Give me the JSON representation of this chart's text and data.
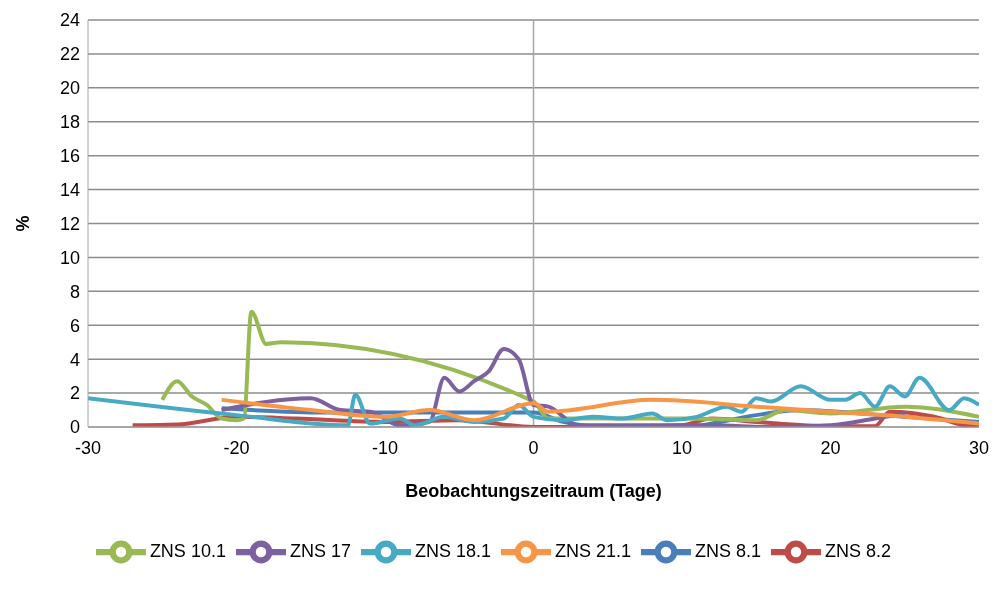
{
  "chart_data": {
    "type": "line",
    "xlabel": "Beobachtungszeitraum (Tage)",
    "ylabel": "%",
    "xlim": [
      -30,
      30
    ],
    "xticks": [
      -30,
      -20,
      -10,
      0,
      10,
      20,
      30
    ],
    "ylim": [
      0,
      24
    ],
    "yticks": [
      0,
      2,
      4,
      6,
      8,
      10,
      12,
      14,
      16,
      18,
      20,
      22,
      24
    ],
    "grid": "y",
    "legend": "bottom",
    "marker": "none",
    "line_style": "solid",
    "ref_lines": [
      {
        "axis": "x",
        "value": 0,
        "color": "#a6a6a6"
      }
    ],
    "series": [
      {
        "name": "ZNS 8.1",
        "color": "#4a7ebb",
        "x": [
          -21,
          -14,
          -7,
          0,
          2,
          5,
          10,
          15,
          18,
          22,
          25,
          30
        ],
        "values": [
          1.1,
          0.85,
          0.85,
          0.85,
          0.3,
          0,
          0,
          0.7,
          1.0,
          0.8,
          0.6,
          0.3
        ]
      },
      {
        "name": "ZNS 8.2",
        "color": "#be4b48",
        "x": [
          -27,
          -24,
          -20,
          -16,
          -10,
          -5,
          0,
          5,
          10,
          12,
          15,
          20,
          23,
          24,
          27,
          29,
          30
        ],
        "values": [
          0.1,
          0.15,
          0.6,
          0.5,
          0.3,
          0.4,
          0,
          0,
          0.1,
          0.5,
          0.3,
          0.05,
          0.05,
          0.9,
          0.6,
          0.1,
          0
        ]
      },
      {
        "name": "ZNS 10.1",
        "color": "#98b954",
        "x": [
          -25,
          -24,
          -23,
          -22,
          -21,
          -20,
          -19.5,
          -19,
          -18,
          -17,
          0,
          1,
          5,
          10,
          15,
          17,
          20,
          25,
          30
        ],
        "values": [
          1.6,
          2.7,
          1.8,
          1.3,
          0.5,
          0.4,
          0.5,
          6.8,
          4.9,
          5.0,
          1.5,
          0.5,
          0.5,
          0.5,
          0.4,
          1,
          0.8,
          1.2,
          0.6
        ]
      },
      {
        "name": "ZNS 17",
        "color": "#7d60a0",
        "x": [
          -21,
          -15,
          -13,
          -11,
          -9,
          -7,
          -6,
          -5,
          -4,
          -3,
          -2,
          -1,
          0,
          1,
          3,
          8,
          12,
          16,
          20,
          23,
          25
        ],
        "values": [
          1.0,
          1.7,
          1.0,
          0.9,
          0.1,
          0.3,
          2.9,
          2.1,
          2.7,
          3.3,
          4.6,
          4.0,
          1.3,
          1.2,
          0.1,
          0.1,
          0.1,
          0,
          0.1,
          0.5,
          0.8
        ]
      },
      {
        "name": "ZNS 18.1",
        "color": "#46aac5",
        "x": [
          -30,
          -20,
          -12.5,
          -12,
          -11,
          -9,
          -8,
          -6,
          -4,
          -2,
          -1,
          0,
          2,
          4,
          6,
          8,
          9,
          11,
          13,
          14,
          15,
          16,
          18,
          20,
          21,
          22,
          23,
          24,
          25,
          26,
          28,
          29,
          30
        ],
        "values": [
          1.7,
          0.7,
          0.1,
          1.9,
          0.2,
          0.5,
          0.1,
          0.6,
          0.3,
          0.5,
          1.3,
          0.6,
          0.4,
          0.6,
          0.5,
          0.8,
          0.4,
          0.6,
          1.2,
          0.9,
          1.7,
          1.5,
          2.4,
          1.6,
          1.6,
          2.0,
          1.2,
          2.4,
          1.8,
          2.9,
          1.0,
          1.7,
          1.3
        ]
      },
      {
        "name": "ZNS 21.1",
        "color": "#f79646",
        "x": [
          -21,
          -15,
          -10,
          -7,
          -4,
          0,
          1,
          8,
          15,
          20,
          25,
          30
        ],
        "values": [
          1.6,
          1.0,
          0.6,
          1.0,
          0.4,
          1.4,
          0.9,
          1.6,
          1.2,
          0.9,
          0.6,
          0.2
        ]
      }
    ]
  }
}
